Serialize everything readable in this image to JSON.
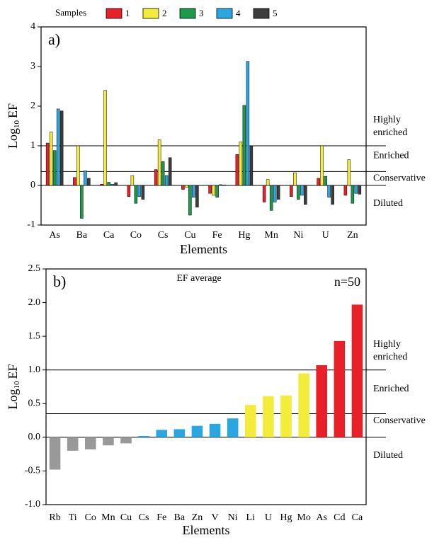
{
  "chart_data": [
    {
      "type": "bar",
      "panel_label": "a)",
      "legend_title": "Samples",
      "y_label": {
        "text": "Log",
        "subscript": "10",
        "suffix": "EF"
      },
      "x_label": "Elements",
      "categories": [
        "As",
        "Ba",
        "Ca",
        "Co",
        "Cs",
        "Cu",
        "Fe",
        "Hg",
        "Mn",
        "Ni",
        "U",
        "Zn"
      ],
      "series": [
        {
          "name": "1",
          "color": "#e8202a",
          "values": [
            1.07,
            0.2,
            0.03,
            -0.28,
            0.4,
            -0.1,
            -0.2,
            0.78,
            -0.42,
            -0.28,
            0.18,
            -0.25
          ]
        },
        {
          "name": "2",
          "color": "#f4ec3a",
          "values": [
            1.35,
            1.0,
            2.4,
            0.25,
            1.15,
            -0.05,
            -0.25,
            1.1,
            0.15,
            0.32,
            1.0,
            0.65
          ]
        },
        {
          "name": "3",
          "color": "#1a9a4a",
          "values": [
            0.88,
            -0.83,
            0.08,
            -0.45,
            0.6,
            -0.75,
            -0.3,
            2.02,
            -0.63,
            -0.35,
            0.23,
            -0.45
          ]
        },
        {
          "name": "4",
          "color": "#2aa6e0",
          "values": [
            1.93,
            0.37,
            0.03,
            -0.28,
            0.25,
            -0.3,
            0.02,
            3.13,
            -0.42,
            -0.25,
            -0.3,
            -0.2
          ]
        },
        {
          "name": "5",
          "color": "#3c3c3c",
          "values": [
            1.88,
            0.18,
            0.07,
            -0.35,
            0.7,
            -0.55,
            0.01,
            1.0,
            -0.35,
            -0.48,
            -0.48,
            -0.22
          ]
        }
      ],
      "ylim": [
        -1,
        4
      ],
      "yticks": [
        -1,
        0,
        1,
        2,
        3,
        4
      ],
      "reference_lines": [
        1,
        0.35
      ],
      "zones": [
        [
          "Highly",
          "enriched"
        ],
        [
          "Enriched"
        ],
        [
          "Conservative"
        ],
        [
          "Diluted"
        ]
      ]
    },
    {
      "type": "bar",
      "panel_label": "b)",
      "title": "EF average",
      "annotation": "n=50",
      "y_label": {
        "text": "Log",
        "subscript": "10",
        "suffix": "EF"
      },
      "x_label": "Elements",
      "categories": [
        "Rb",
        "Ti",
        "Co",
        "Mn",
        "Cu",
        "Cs",
        "Fe",
        "Ba",
        "Zn",
        "V",
        "Ni",
        "Li",
        "U",
        "Hg",
        "Mo",
        "As",
        "Cd",
        "Ca"
      ],
      "values": [
        -0.48,
        -0.2,
        -0.18,
        -0.12,
        -0.09,
        0.02,
        0.11,
        0.12,
        0.17,
        0.2,
        0.28,
        0.48,
        0.61,
        0.62,
        0.95,
        1.07,
        1.43,
        1.97
      ],
      "colors": [
        "#999999",
        "#999999",
        "#999999",
        "#999999",
        "#999999",
        "#2aa6e0",
        "#2aa6e0",
        "#2aa6e0",
        "#2aa6e0",
        "#2aa6e0",
        "#2aa6e0",
        "#f4ec3a",
        "#f4ec3a",
        "#f4ec3a",
        "#f4ec3a",
        "#e8202a",
        "#e8202a",
        "#e8202a"
      ],
      "ylim": [
        -1,
        2.5
      ],
      "yticks": [
        {
          "value": -1,
          "label": "-1.0"
        },
        {
          "value": -0.5,
          "label": "-0.5"
        },
        {
          "value": 0,
          "label": "0.0"
        },
        {
          "value": 0.5,
          "label": "0.5"
        },
        {
          "value": 1,
          "label": "1.0"
        },
        {
          "value": 1.5,
          "label": "1.5"
        },
        {
          "value": 2,
          "label": "2.0"
        },
        {
          "value": 2.5,
          "label": "2.5"
        }
      ],
      "reference_lines": [
        1,
        0.35
      ],
      "zones": [
        [
          "Highly",
          "enriched"
        ],
        [
          "Enriched"
        ],
        [
          "Conservative"
        ],
        [
          "Diluted"
        ]
      ]
    }
  ]
}
